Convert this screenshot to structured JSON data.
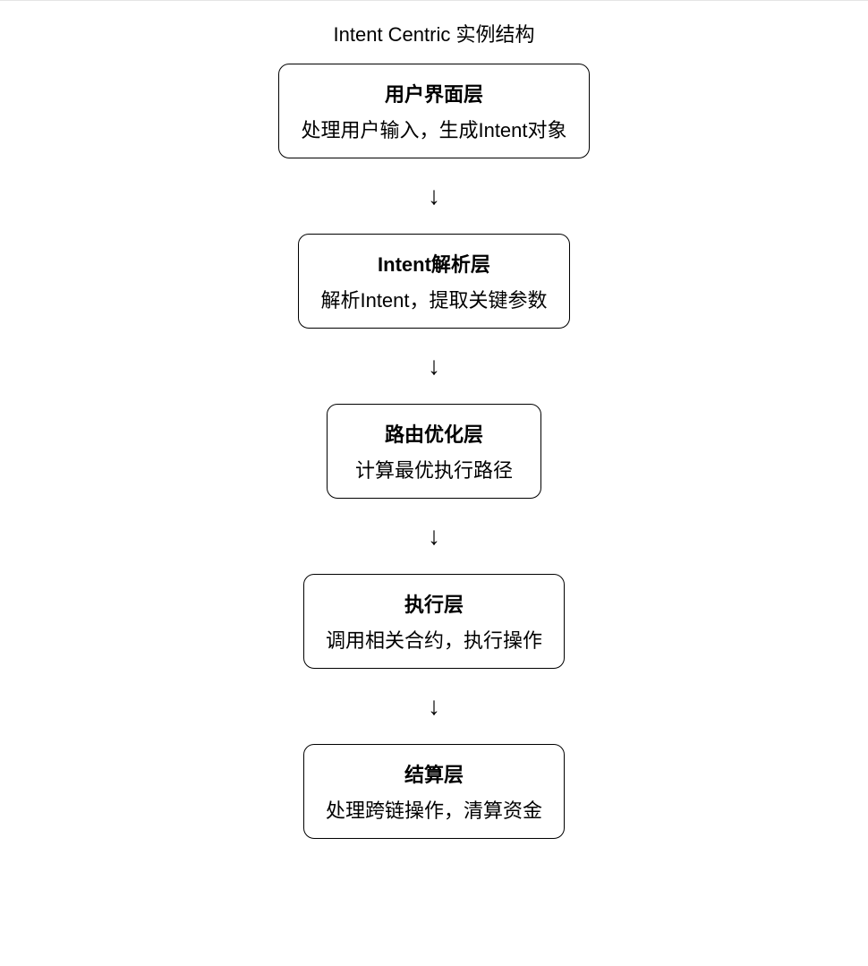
{
  "diagram": {
    "type": "flowchart",
    "direction": "vertical",
    "title": "Intent Centric 实例结构",
    "background_color": "#ffffff",
    "border_color": "#000000",
    "text_color": "#000000",
    "node_border_radius": 12,
    "node_border_width": 1.5,
    "title_fontsize": 22,
    "node_title_fontsize": 22,
    "node_title_weight": 700,
    "node_desc_fontsize": 22,
    "node_desc_weight": 400,
    "arrow_symbol": "↓",
    "arrow_fontsize": 28,
    "arrow_gap": 28,
    "nodes": [
      {
        "id": "ui-layer",
        "title": "用户界面层",
        "description": "处理用户输入，生成Intent对象"
      },
      {
        "id": "parse-layer",
        "title": "Intent解析层",
        "description": "解析Intent，提取关键参数"
      },
      {
        "id": "route-layer",
        "title": "路由优化层",
        "description": "计算最优执行路径"
      },
      {
        "id": "exec-layer",
        "title": "执行层",
        "description": "调用相关合约，执行操作"
      },
      {
        "id": "settle-layer",
        "title": "结算层",
        "description": "处理跨链操作，清算资金"
      }
    ]
  }
}
